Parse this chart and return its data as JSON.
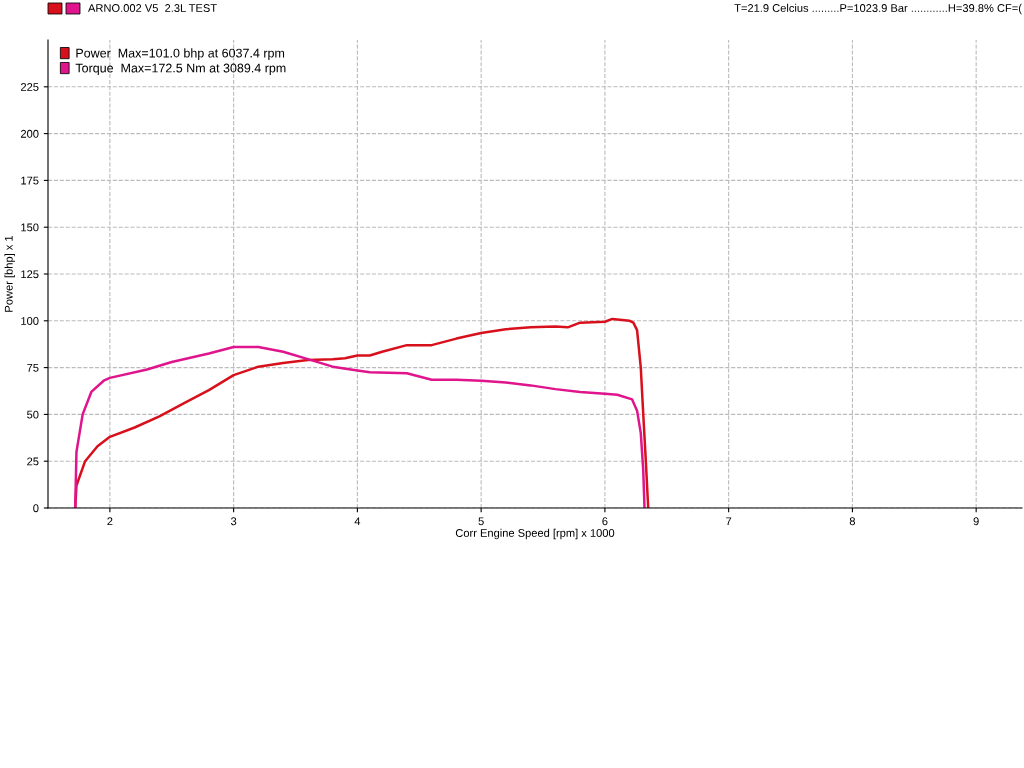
{
  "chart_data": {
    "type": "line",
    "title": "ARNO.002 V5  2.3L TEST",
    "annotations": [
      "T=21.9 Celcius .........P=1023.9 Bar ............H=39.8% CF=("
    ],
    "xlabel": "Corr Engine Speed [rpm] x 1000",
    "ylabel": "Power [bhp] x 1",
    "series": [
      {
        "name": "Power  Max=101.0 bhp at 6037.4 rpm",
        "color": "#d8101c",
        "x": [
          1.72,
          1.73,
          1.8,
          1.9,
          2.0,
          2.2,
          2.4,
          2.6,
          2.8,
          3.0,
          3.2,
          3.4,
          3.6,
          3.8,
          3.9,
          4.0,
          4.1,
          4.2,
          4.4,
          4.6,
          4.8,
          5.0,
          5.2,
          5.4,
          5.6,
          5.7,
          5.8,
          6.0,
          6.06,
          6.2,
          6.23,
          6.26,
          6.29,
          6.31,
          6.33,
          6.35
        ],
        "values": [
          0,
          12,
          25,
          33,
          38,
          43,
          49,
          56,
          63,
          71,
          75.5,
          77.5,
          79,
          79.5,
          80,
          81.5,
          81.5,
          83.5,
          87,
          87,
          90.5,
          93.5,
          95.5,
          96.5,
          97,
          96.5,
          99,
          99.5,
          101,
          100,
          99,
          95,
          75,
          50,
          26,
          0
        ]
      },
      {
        "name": "Torque  Max=172.5 Nm at 3089.4 rpm",
        "color": "#e0148c",
        "x": [
          1.72,
          1.73,
          1.78,
          1.85,
          1.95,
          2.0,
          2.3,
          2.5,
          2.8,
          3.0,
          3.2,
          3.4,
          3.6,
          3.8,
          4.0,
          4.1,
          4.4,
          4.6,
          4.8,
          5.0,
          5.2,
          5.4,
          5.6,
          5.8,
          6.0,
          6.1,
          6.22,
          6.26,
          6.29,
          6.31,
          6.32
        ],
        "values": [
          0,
          30,
          50,
          62,
          68,
          69.5,
          74,
          78,
          82.5,
          86,
          86,
          83.5,
          79.5,
          75.5,
          73.5,
          72.5,
          72,
          68.5,
          68.5,
          68,
          67,
          65.5,
          63.5,
          62,
          61,
          60.5,
          58,
          52,
          40,
          20,
          0
        ]
      }
    ],
    "xlim": [
      1.5,
      9.37
    ],
    "xticks": [
      2,
      3,
      4,
      5,
      6,
      7,
      8,
      9
    ],
    "ylim": [
      0,
      250
    ],
    "yticks": [
      0,
      25,
      50,
      75,
      100,
      125,
      150,
      175,
      200,
      225
    ],
    "grid": true,
    "legend": "top left",
    "marker": "none",
    "line_style": "solid"
  }
}
